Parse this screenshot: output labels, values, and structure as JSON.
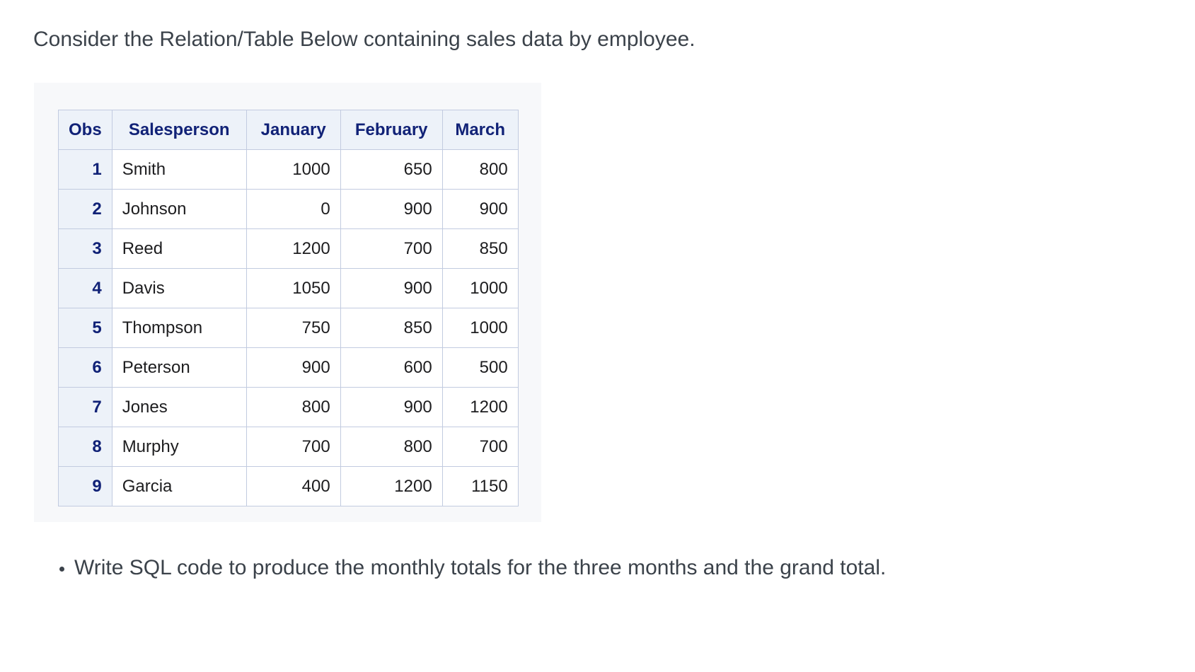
{
  "page": {
    "intro": "Consider the Relation/Table Below containing sales data by employee.",
    "bullet": "Write SQL code to produce the monthly totals for the three months and the grand total."
  },
  "table": {
    "columns": [
      "Obs",
      "Salesperson",
      "January",
      "February",
      "March"
    ],
    "rows": [
      [
        "1",
        "Smith",
        "1000",
        "650",
        "800"
      ],
      [
        "2",
        "Johnson",
        "0",
        "900",
        "900"
      ],
      [
        "3",
        "Reed",
        "1200",
        "700",
        "850"
      ],
      [
        "4",
        "Davis",
        "1050",
        "900",
        "1000"
      ],
      [
        "5",
        "Thompson",
        "750",
        "850",
        "1000"
      ],
      [
        "6",
        "Peterson",
        "900",
        "600",
        "500"
      ],
      [
        "7",
        "Jones",
        "800",
        "900",
        "1200"
      ],
      [
        "8",
        "Murphy",
        "700",
        "800",
        "700"
      ],
      [
        "9",
        "Garcia",
        "400",
        "1200",
        "1150"
      ]
    ]
  },
  "colors": {
    "header_bg": "#edf2f9",
    "header_text": "#112277",
    "table_border": "#c2cbe0",
    "panel_bg": "#f7f8fa",
    "body_text": "#3b424a",
    "cell_text": "#1d1d1f"
  }
}
